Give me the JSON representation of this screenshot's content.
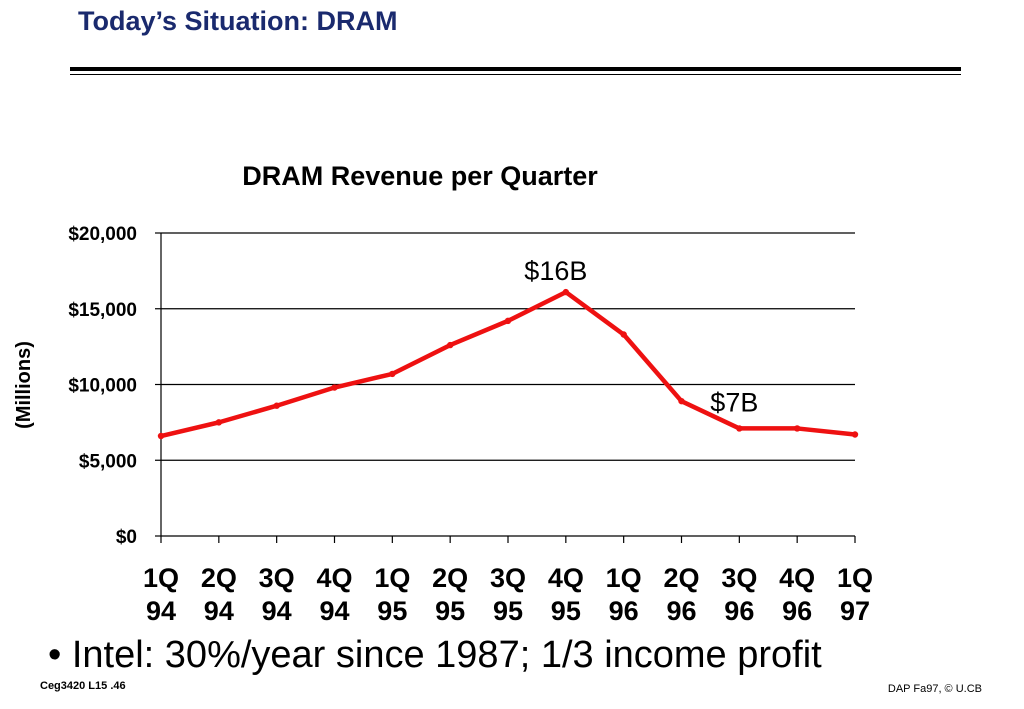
{
  "slide": {
    "title": "Today’s Situation: DRAM",
    "bullet": "• Intel: 30%/year since 1987; 1/3 income profit",
    "footer_left": "Ceg3420 L15 .46",
    "footer_right": "DAP Fa97, © U.CB"
  },
  "chart_data": {
    "type": "line",
    "title": "DRAM Revenue per Quarter",
    "ylabel": "(Millions)",
    "xlabel": "",
    "ylim": [
      0,
      20000
    ],
    "yticks": [
      0,
      5000,
      10000,
      15000,
      20000
    ],
    "ytick_labels": [
      "$0",
      "$5,000",
      "$10,000",
      "$15,000",
      "$20,000"
    ],
    "categories": [
      [
        "1Q",
        "94"
      ],
      [
        "2Q",
        "94"
      ],
      [
        "3Q",
        "94"
      ],
      [
        "4Q",
        "94"
      ],
      [
        "1Q",
        "95"
      ],
      [
        "2Q",
        "95"
      ],
      [
        "3Q",
        "95"
      ],
      [
        "4Q",
        "95"
      ],
      [
        "1Q",
        "96"
      ],
      [
        "2Q",
        "96"
      ],
      [
        "3Q",
        "96"
      ],
      [
        "4Q",
        "96"
      ],
      [
        "1Q",
        "97"
      ]
    ],
    "series": [
      {
        "values": [
          6600,
          7500,
          8600,
          9800,
          10700,
          12600,
          14200,
          16100,
          13300,
          8900,
          7100,
          7100,
          6700
        ],
        "color": "#ee1111"
      }
    ],
    "grid": true,
    "annotations": [
      {
        "text": "$16B",
        "x_index": 7,
        "value": 16100
      },
      {
        "text": "$7B",
        "x_index": 10,
        "value": 7100
      }
    ]
  }
}
